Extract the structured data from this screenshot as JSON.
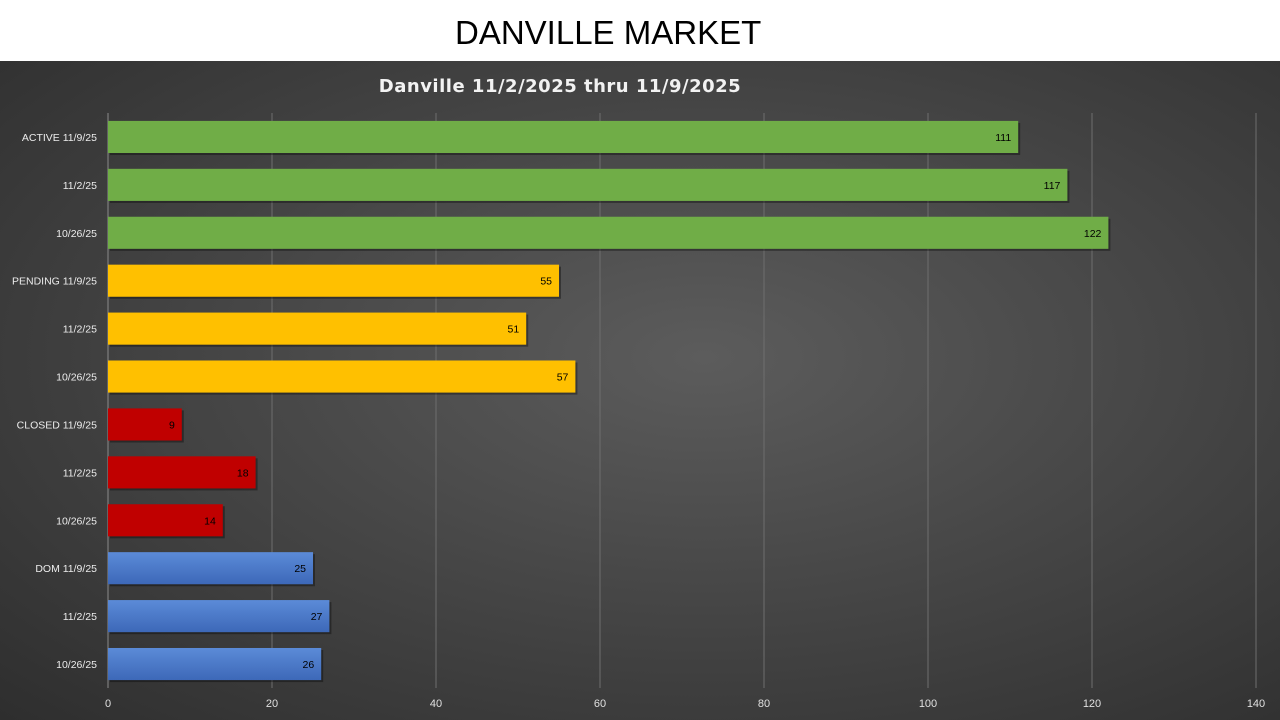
{
  "page": {
    "title": "DANVILLE MARKET"
  },
  "chart_data": {
    "type": "bar",
    "orientation": "horizontal",
    "title": "Danville 11/2/2025 thru 11/9/2025",
    "xlabel": "",
    "ylabel": "",
    "xlim": [
      0,
      140
    ],
    "xticks": [
      0,
      20,
      40,
      60,
      80,
      100,
      120,
      140
    ],
    "grid": true,
    "legend": "none",
    "categories": [
      "ACTIVE 11/9/25",
      "11/2/25",
      "10/26/25",
      "PENDING 11/9/25",
      "11/2/25",
      "10/26/25",
      "CLOSED 11/9/25",
      "11/2/25",
      "10/26/25",
      "DOM 11/9/25",
      "11/2/25",
      "10/26/25"
    ],
    "values": [
      111,
      117,
      122,
      55,
      51,
      57,
      9,
      18,
      14,
      25,
      27,
      26
    ],
    "groups": [
      {
        "indices": [
          0,
          1,
          2
        ],
        "color": "#70ad47"
      },
      {
        "indices": [
          3,
          4,
          5
        ],
        "color": "#ffc000"
      },
      {
        "indices": [
          6,
          7,
          8
        ],
        "color": "#c00000"
      },
      {
        "indices": [
          9,
          10,
          11
        ],
        "color": "#4472c4"
      }
    ]
  }
}
